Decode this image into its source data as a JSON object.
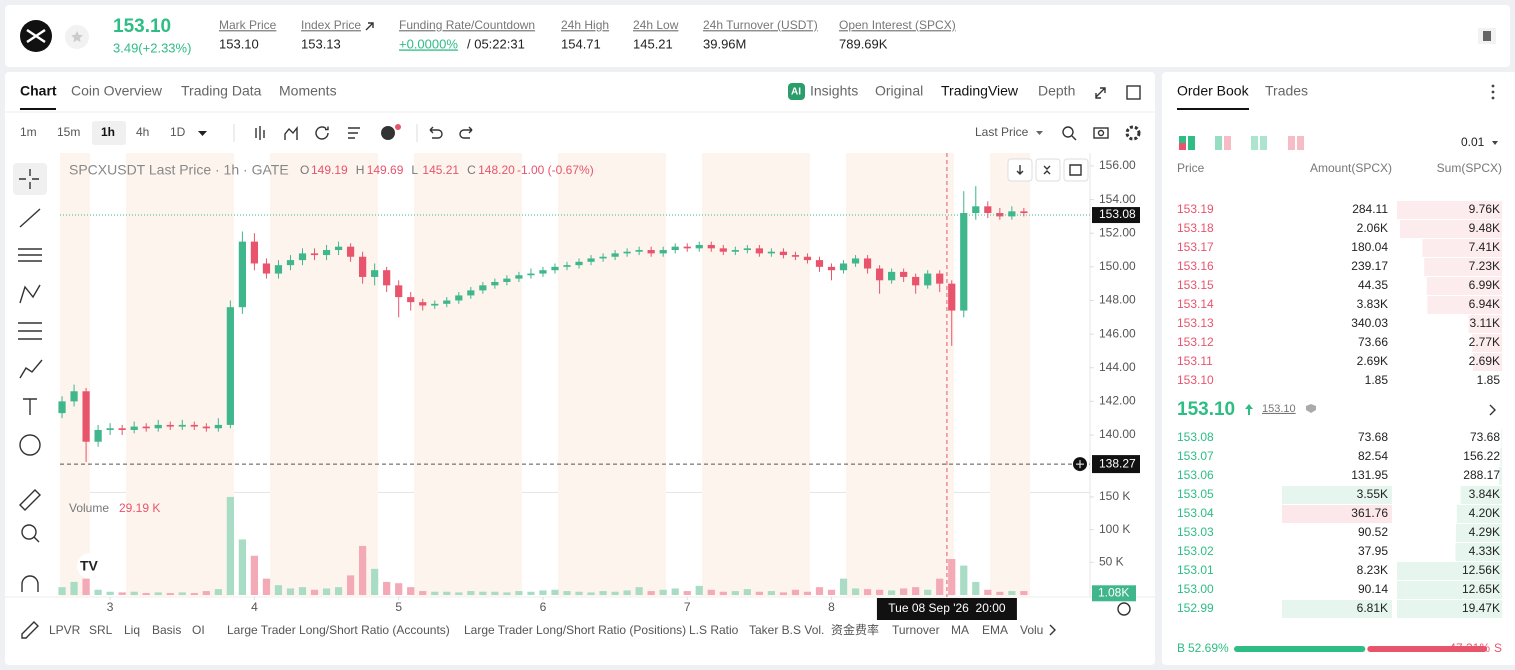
{
  "header": {
    "price": "153.10",
    "change": "3.49(+2.33%)",
    "stats": [
      {
        "label": "Mark Price",
        "value": "153.10"
      },
      {
        "label": "Index Price",
        "value": "153.13"
      },
      {
        "label": "Funding Rate/Countdown",
        "value": "+0.0000%",
        "extra": "/ 05:22:31"
      },
      {
        "label": "24h High",
        "value": "154.71"
      },
      {
        "label": "24h Low",
        "value": "145.21"
      },
      {
        "label": "24h Turnover (USDT)",
        "value": "39.96M"
      },
      {
        "label": "Open Interest (SPCX)",
        "value": "789.69K"
      }
    ]
  },
  "tabs": [
    "Chart",
    "Coin Overview",
    "Trading Data",
    "Moments"
  ],
  "view_tabs": [
    "Insights",
    "Original",
    "TradingView",
    "Depth"
  ],
  "intervals": [
    "1m",
    "15m",
    "1h",
    "4h",
    "1D"
  ],
  "price_type": "Last Price",
  "chart_data": {
    "type": "candlestick",
    "title": "SPCXUSDT Last Price · 1h · GATE",
    "ohlc_legend": [
      {
        "label": "O",
        "value": "149.19"
      },
      {
        "label": "H",
        "value": "149.69"
      },
      {
        "label": "L",
        "value": "145.21"
      },
      {
        "label": "C",
        "value": "148.20"
      }
    ],
    "ohlc_change": "-1.00 (-0.67%)",
    "volume_label": "Volume",
    "volume_legend": "29.19 K",
    "up_color": "#3fb68b",
    "down_color": "#e8546c",
    "up_volume_color": "#a9dcc5",
    "down_volume_color": "#f3a9b6",
    "xlim": [
      -0.17,
      85.5
    ],
    "xticks": [
      {
        "value": 4,
        "label": "3"
      },
      {
        "value": 16,
        "label": "4"
      },
      {
        "value": 28,
        "label": "5"
      },
      {
        "value": 40,
        "label": "6"
      },
      {
        "value": 52,
        "label": "7"
      },
      {
        "value": 64,
        "label": "8"
      }
    ],
    "ylim": [
      136.61,
      156.77
    ],
    "yticks": [
      {
        "value": 156,
        "label": "156.00"
      },
      {
        "value": 154,
        "label": "154.00"
      },
      {
        "value": 152,
        "label": "152.00"
      },
      {
        "value": 150,
        "label": "150.00"
      },
      {
        "value": 148,
        "label": "148.00"
      },
      {
        "value": 146,
        "label": "146.00"
      },
      {
        "value": 144,
        "label": "144.00"
      },
      {
        "value": 142,
        "label": "142.00"
      },
      {
        "value": 140,
        "label": "140.00"
      }
    ],
    "volume_ylim": [
      0,
      156000
    ],
    "volume_yticks": [
      {
        "value": 150000,
        "label": "150 K"
      },
      {
        "value": 100000,
        "label": "100 K"
      },
      {
        "value": 50000,
        "label": "50 K"
      }
    ],
    "open": [
      141.3,
      142.0,
      142.6,
      139.6,
      140.3,
      140.4,
      140.3,
      140.5,
      140.4,
      140.6,
      140.5,
      140.6,
      140.5,
      140.4,
      140.6,
      147.6,
      151.5,
      150.2,
      149.6,
      150.1,
      150.4,
      150.8,
      150.7,
      151.0,
      151.2,
      150.6,
      149.4,
      149.8,
      148.9,
      148.2,
      147.9,
      147.7,
      147.8,
      148.0,
      148.3,
      148.6,
      148.9,
      149.1,
      149.3,
      149.5,
      149.6,
      149.8,
      150.0,
      150.1,
      150.3,
      150.5,
      150.6,
      150.8,
      150.9,
      151.0,
      150.8,
      151.0,
      151.2,
      151.1,
      151.3,
      151.1,
      150.9,
      151.0,
      151.1,
      150.8,
      150.9,
      150.7,
      150.6,
      150.4,
      150.0,
      149.8,
      150.2,
      150.5,
      149.9,
      149.2,
      149.7,
      149.4,
      148.9,
      149.6,
      149.0,
      147.4,
      153.2,
      153.6,
      153.2,
      153.0,
      153.3
    ],
    "high": [
      142.3,
      143.0,
      142.8,
      140.6,
      140.7,
      140.6,
      140.8,
      140.7,
      140.9,
      140.8,
      140.9,
      140.8,
      140.7,
      141.0,
      148.0,
      152.1,
      152.0,
      150.5,
      150.4,
      150.7,
      151.1,
      151.1,
      151.3,
      151.5,
      151.4,
      150.9,
      150.2,
      150.0,
      149.2,
      148.5,
      148.1,
      148.0,
      148.2,
      148.5,
      148.8,
      149.1,
      149.3,
      149.5,
      149.7,
      149.9,
      150.0,
      150.2,
      150.3,
      150.5,
      150.7,
      150.8,
      151.0,
      151.1,
      151.2,
      151.2,
      151.2,
      151.4,
      151.4,
      151.5,
      151.5,
      151.3,
      151.2,
      151.3,
      151.3,
      151.1,
      151.1,
      150.9,
      150.8,
      150.6,
      150.2,
      150.4,
      150.7,
      150.7,
      150.1,
      149.9,
      149.9,
      149.6,
      149.8,
      149.8,
      149.2,
      154.5,
      154.8,
      153.9,
      153.5,
      153.6,
      153.5
    ],
    "low": [
      141.0,
      141.7,
      138.4,
      139.3,
      140.0,
      140.0,
      140.1,
      140.2,
      140.2,
      140.3,
      140.3,
      140.3,
      140.2,
      140.2,
      140.4,
      147.2,
      149.8,
      149.3,
      149.3,
      149.8,
      150.1,
      150.4,
      150.4,
      150.7,
      150.3,
      149.0,
      148.9,
      148.5,
      147.0,
      147.4,
      147.4,
      147.5,
      147.6,
      147.8,
      148.1,
      148.4,
      148.7,
      148.9,
      149.1,
      149.3,
      149.4,
      149.6,
      149.8,
      149.9,
      150.1,
      150.3,
      150.4,
      150.6,
      150.7,
      150.6,
      150.6,
      150.8,
      150.9,
      150.9,
      150.9,
      150.7,
      150.7,
      150.8,
      150.6,
      150.6,
      150.5,
      150.4,
      150.2,
      149.7,
      149.2,
      149.6,
      150.0,
      149.6,
      148.4,
      149.0,
      149.1,
      148.4,
      148.7,
      148.5,
      145.3,
      147.0,
      152.8,
      152.9,
      152.8,
      152.8,
      153.0
    ],
    "close": [
      142.0,
      142.6,
      139.6,
      140.3,
      140.4,
      140.3,
      140.5,
      140.4,
      140.6,
      140.5,
      140.6,
      140.5,
      140.4,
      140.6,
      147.6,
      151.5,
      150.2,
      149.6,
      150.1,
      150.4,
      150.8,
      150.7,
      151.0,
      151.2,
      150.6,
      149.4,
      149.8,
      148.9,
      148.2,
      147.9,
      147.7,
      147.8,
      148.0,
      148.3,
      148.6,
      148.9,
      149.1,
      149.3,
      149.5,
      149.6,
      149.8,
      150.0,
      150.1,
      150.3,
      150.5,
      150.6,
      150.8,
      150.9,
      151.0,
      150.8,
      151.0,
      151.2,
      151.1,
      151.3,
      151.1,
      150.9,
      151.0,
      151.1,
      150.8,
      150.9,
      150.7,
      150.6,
      150.4,
      150.0,
      149.8,
      150.2,
      150.5,
      149.9,
      149.2,
      149.7,
      149.4,
      148.9,
      149.6,
      149.0,
      147.4,
      153.2,
      153.6,
      153.2,
      153.0,
      153.3,
      153.2
    ],
    "volume": [
      12000,
      20000,
      25000,
      8000,
      5000,
      4000,
      5000,
      3000,
      4000,
      3000,
      4000,
      3000,
      6000,
      9000,
      150000,
      85000,
      60000,
      25000,
      15000,
      10000,
      12000,
      8000,
      10000,
      12000,
      30000,
      75000,
      40000,
      20000,
      18000,
      12000,
      6000,
      5000,
      5000,
      4000,
      6000,
      5000,
      5000,
      4000,
      6000,
      5000,
      7000,
      8000,
      6000,
      5000,
      4000,
      6000,
      5000,
      7000,
      12000,
      6000,
      8000,
      10000,
      6000,
      14000,
      8000,
      5000,
      6000,
      9000,
      5000,
      6000,
      4000,
      8000,
      5000,
      12000,
      8000,
      25000,
      10000,
      9000,
      8000,
      7000,
      10000,
      12000,
      8000,
      25000,
      55000,
      45000,
      20000,
      8000,
      5000,
      6000,
      6000
    ],
    "last_price": {
      "value": 153.08,
      "label": "153.08"
    },
    "crosshair": {
      "x": 73.6,
      "price": {
        "value": 138.27,
        "label": "138.27"
      },
      "date_label": "Tue 08 Sep '26  20:00"
    },
    "current_volume": {
      "value": 1080,
      "label": "1.08K"
    }
  },
  "indicators": [
    "LPVR",
    "SRL",
    "Liq",
    "Basis",
    "OI",
    "Large Trader Long/Short Ratio (Accounts)",
    "Large Trader Long/Short Ratio (Positions)",
    "L.S Ratio",
    "Taker B.S Vol.",
    "资金费率",
    "Turnover",
    "MA",
    "EMA",
    "Volu"
  ],
  "order_book": {
    "tabs": [
      "Order Book",
      "Trades"
    ],
    "tick_size": "0.01",
    "columns": [
      "Price",
      "Amount(SPCX)",
      "Sum(SPCX)"
    ],
    "asks": [
      [
        "153.19",
        "284.11",
        "9.76K"
      ],
      [
        "153.18",
        "2.06K",
        "9.48K"
      ],
      [
        "153.17",
        "180.04",
        "7.41K"
      ],
      [
        "153.16",
        "239.17",
        "7.23K"
      ],
      [
        "153.15",
        "44.35",
        "6.99K"
      ],
      [
        "153.14",
        "3.83K",
        "6.94K"
      ],
      [
        "153.13",
        "340.03",
        "3.11K"
      ],
      [
        "153.12",
        "73.66",
        "2.77K"
      ],
      [
        "153.11",
        "2.69K",
        "2.69K"
      ],
      [
        "153.10",
        "1.85",
        "1.85"
      ]
    ],
    "mid_price": "153.10",
    "mark_price": "153.10",
    "bids": [
      [
        "153.08",
        "73.68",
        "73.68"
      ],
      [
        "153.07",
        "82.54",
        "156.22"
      ],
      [
        "153.06",
        "131.95",
        "288.17"
      ],
      [
        "153.05",
        "3.55K",
        "3.84K"
      ],
      [
        "153.04",
        "361.76",
        "4.20K"
      ],
      [
        "153.03",
        "90.52",
        "4.29K"
      ],
      [
        "153.02",
        "37.95",
        "4.33K"
      ],
      [
        "153.01",
        "8.23K",
        "12.56K"
      ],
      [
        "153.00",
        "90.14",
        "12.65K"
      ],
      [
        "152.99",
        "6.81K",
        "19.47K"
      ]
    ],
    "buy_label": "B",
    "buy_ratio": "52.69%",
    "sell_ratio": "47.31%",
    "sell_label": "S"
  }
}
